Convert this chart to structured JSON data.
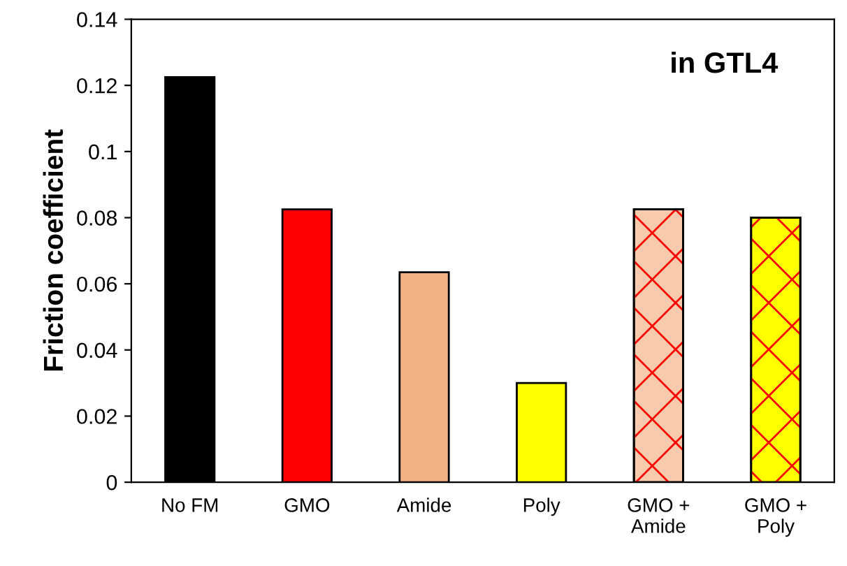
{
  "chart_data": {
    "type": "bar",
    "title": "in GTL4",
    "ylabel": "Friction coefficient",
    "categories": [
      "No FM",
      "GMO",
      "Amide",
      "Poly",
      "GMO +\nAmide",
      "GMO +\nPoly"
    ],
    "values": [
      0.1225,
      0.0825,
      0.0635,
      0.03,
      0.0825,
      0.08
    ],
    "colors": [
      "#000000",
      "#ff0000",
      "#f4b183",
      "#ffff00",
      "#f8cbad",
      "#ffff00"
    ],
    "ylim": [
      0,
      0.14
    ],
    "yticks": [
      0,
      0.02,
      0.04,
      0.06,
      0.08,
      0.1,
      0.12,
      0.14
    ],
    "grid": false
  }
}
